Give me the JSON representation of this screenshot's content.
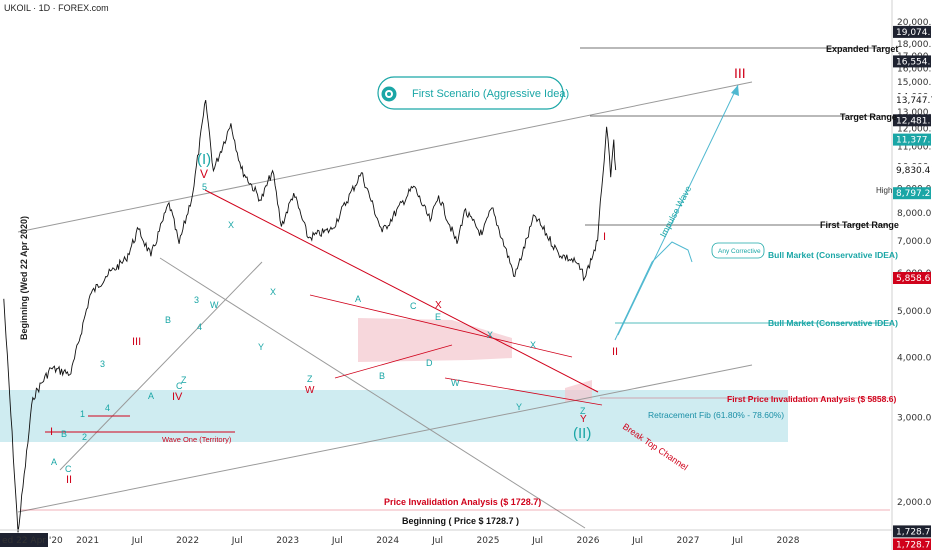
{
  "header": {
    "symbol_line": "UKOIL · 1D · FOREX.com"
  },
  "colors": {
    "accent_teal": "#1aa6a6",
    "wave_red": "#d0021b",
    "band_fill": "#bfe6ec",
    "zone_pink": "#f3c6cd",
    "price_line": "#111111"
  },
  "y_axis": {
    "ticks": [
      "20,000.0",
      "19,000.0",
      "18,000.0",
      "17,000.0",
      "16,000.0",
      "15,000.0",
      "14,000.0",
      "13,000.0",
      "12,000.0",
      "11,000.0",
      "10,000.0",
      "9,000.0",
      "8,000.0",
      "7,000.0",
      "6,000.0",
      "5,000.0",
      "4,000.0",
      "3,000.0",
      "2,000.0"
    ],
    "price_badges": [
      {
        "text": "19,074.9",
        "style": "dark"
      },
      {
        "text": "16,554.3",
        "style": "dark"
      },
      {
        "text": "13,747.7",
        "style": "plain"
      },
      {
        "text": "12,481.0",
        "style": "dark"
      },
      {
        "text": "11,377.6",
        "style": "teal"
      },
      {
        "text": "9,830.4",
        "style": "plain"
      },
      {
        "text": "8,797.2",
        "style": "teal"
      },
      {
        "text": "5,858.6",
        "style": "red"
      },
      {
        "text": "1,728.7",
        "style": "dark"
      },
      {
        "text": "1,728.7",
        "style": "red"
      }
    ]
  },
  "x_axis": {
    "ticks": [
      "ed 22 Apr '20",
      "2021",
      "Jul",
      "2022",
      "Jul",
      "2023",
      "Jul",
      "2024",
      "Jul",
      "2025",
      "Jul",
      "2026",
      "Jul",
      "2027",
      "Jul",
      "2028"
    ]
  },
  "vertical_label": "Beginning (Wed 22 Apr 2020)",
  "scenario": {
    "label": "First Scenario (Aggressive Idea)",
    "icon": "eye-icon"
  },
  "levels": {
    "expanded_target": "Expanded Target",
    "target_range": "Target Range",
    "high": "High",
    "first_target_range": "First Target Range",
    "bull_market_1": "Bull Market (Conservative IDEA)",
    "any_corrective": "Any Corrective",
    "bull_market_2": "Bull Market (Conservative IDEA)",
    "first_price_invalidation": "First Price Invalidation Analysis ($ 5858.6)",
    "retracement_fib": "Retracement Fib (61.80% - 78.60%)",
    "wave_one_territory": "Wave One (Territory)",
    "price_invalidation": "Price Invalidation Analysis ($ 1728.7)",
    "beginning": "Beginning ( Price $ 1728.7 )",
    "break_top_channel": "Break Top Channel",
    "impulse_wave": "Impulse Wave"
  },
  "wave_labels": {
    "teal_I": "(I)",
    "teal_II": "(II)",
    "red_V": "V",
    "red_III": "III",
    "red_I": "I",
    "red_II": "II",
    "red_IV": "IV",
    "red_III_top": "III",
    "red_I_left": "I",
    "red_II_left": "II",
    "red_W": "W",
    "red_X": "X",
    "red_Y": "Y",
    "t_1": "1",
    "t_2": "2",
    "t_3": "3",
    "t_4": "4",
    "t_5": "5",
    "t_3b": "3",
    "t_4b": "4",
    "t_A": "A",
    "t_B": "B",
    "t_C": "C",
    "t_A2": "A",
    "t_B2": "B",
    "t_C2": "C",
    "t_Z": "Z",
    "t_W": "W",
    "t_X": "X",
    "t_Y": "Y",
    "t_X2": "X",
    "t_Z2": "Z",
    "t_A3": "A",
    "t_B3": "B",
    "t_C3": "C",
    "t_D3": "D",
    "t_E3": "E",
    "t_W4": "W",
    "t_X4": "X",
    "t_Y4": "Y",
    "t_X5": "X",
    "t_Z5": "Z"
  },
  "chart_data": {
    "type": "line",
    "title": "",
    "xlabel": "",
    "ylabel": "",
    "y_scale": "log",
    "ylim": [
      1650,
      21000
    ],
    "xlim": [
      "2020-04-22",
      "2028-03-01"
    ],
    "grid": false,
    "series": [
      {
        "values_xy": [
          [
            "2020-03-01",
            5300
          ],
          [
            "2020-04-22",
            1728.7
          ],
          [
            "2020-06-15",
            3300
          ],
          [
            "2020-08-20",
            3800
          ],
          [
            "2020-11-01",
            3700
          ],
          [
            "2021-01-10",
            5400
          ],
          [
            "2021-03-08",
            5900
          ],
          [
            "2021-05-20",
            6400
          ],
          [
            "2021-07-06",
            7400
          ],
          [
            "2021-08-20",
            6500
          ],
          [
            "2021-10-25",
            8400
          ],
          [
            "2021-12-01",
            6900
          ],
          [
            "2022-01-20",
            8800
          ],
          [
            "2022-03-08",
            13747.7
          ],
          [
            "2022-04-05",
            9800
          ],
          [
            "2022-06-08",
            12300
          ],
          [
            "2022-07-15",
            9900
          ],
          [
            "2022-09-26",
            8500
          ],
          [
            "2022-11-07",
            9800
          ],
          [
            "2022-12-09",
            7500
          ],
          [
            "2023-01-23",
            8800
          ],
          [
            "2023-03-17",
            7100
          ],
          [
            "2023-06-12",
            7400
          ],
          [
            "2023-09-27",
            9700
          ],
          [
            "2023-12-12",
            7300
          ],
          [
            "2024-04-05",
            9100
          ],
          [
            "2024-06-04",
            7700
          ],
          [
            "2024-07-05",
            8700
          ],
          [
            "2024-09-10",
            6900
          ],
          [
            "2024-10-07",
            8100
          ],
          [
            "2024-12-10",
            7200
          ],
          [
            "2025-01-15",
            8200
          ],
          [
            "2025-04-09",
            5900
          ],
          [
            "2025-06-20",
            7900
          ],
          [
            "2025-09-15",
            6600
          ],
          [
            "2025-11-20",
            6300
          ],
          [
            "2025-12-20",
            5858.6
          ],
          [
            "2026-02-05",
            7000
          ],
          [
            "2026-02-20",
            9000
          ],
          [
            "2026-03-10",
            12100
          ],
          [
            "2026-03-25",
            9500
          ],
          [
            "2026-04-05",
            11377.6
          ],
          [
            "2026-04-12",
            9830.4
          ]
        ]
      }
    ]
  }
}
